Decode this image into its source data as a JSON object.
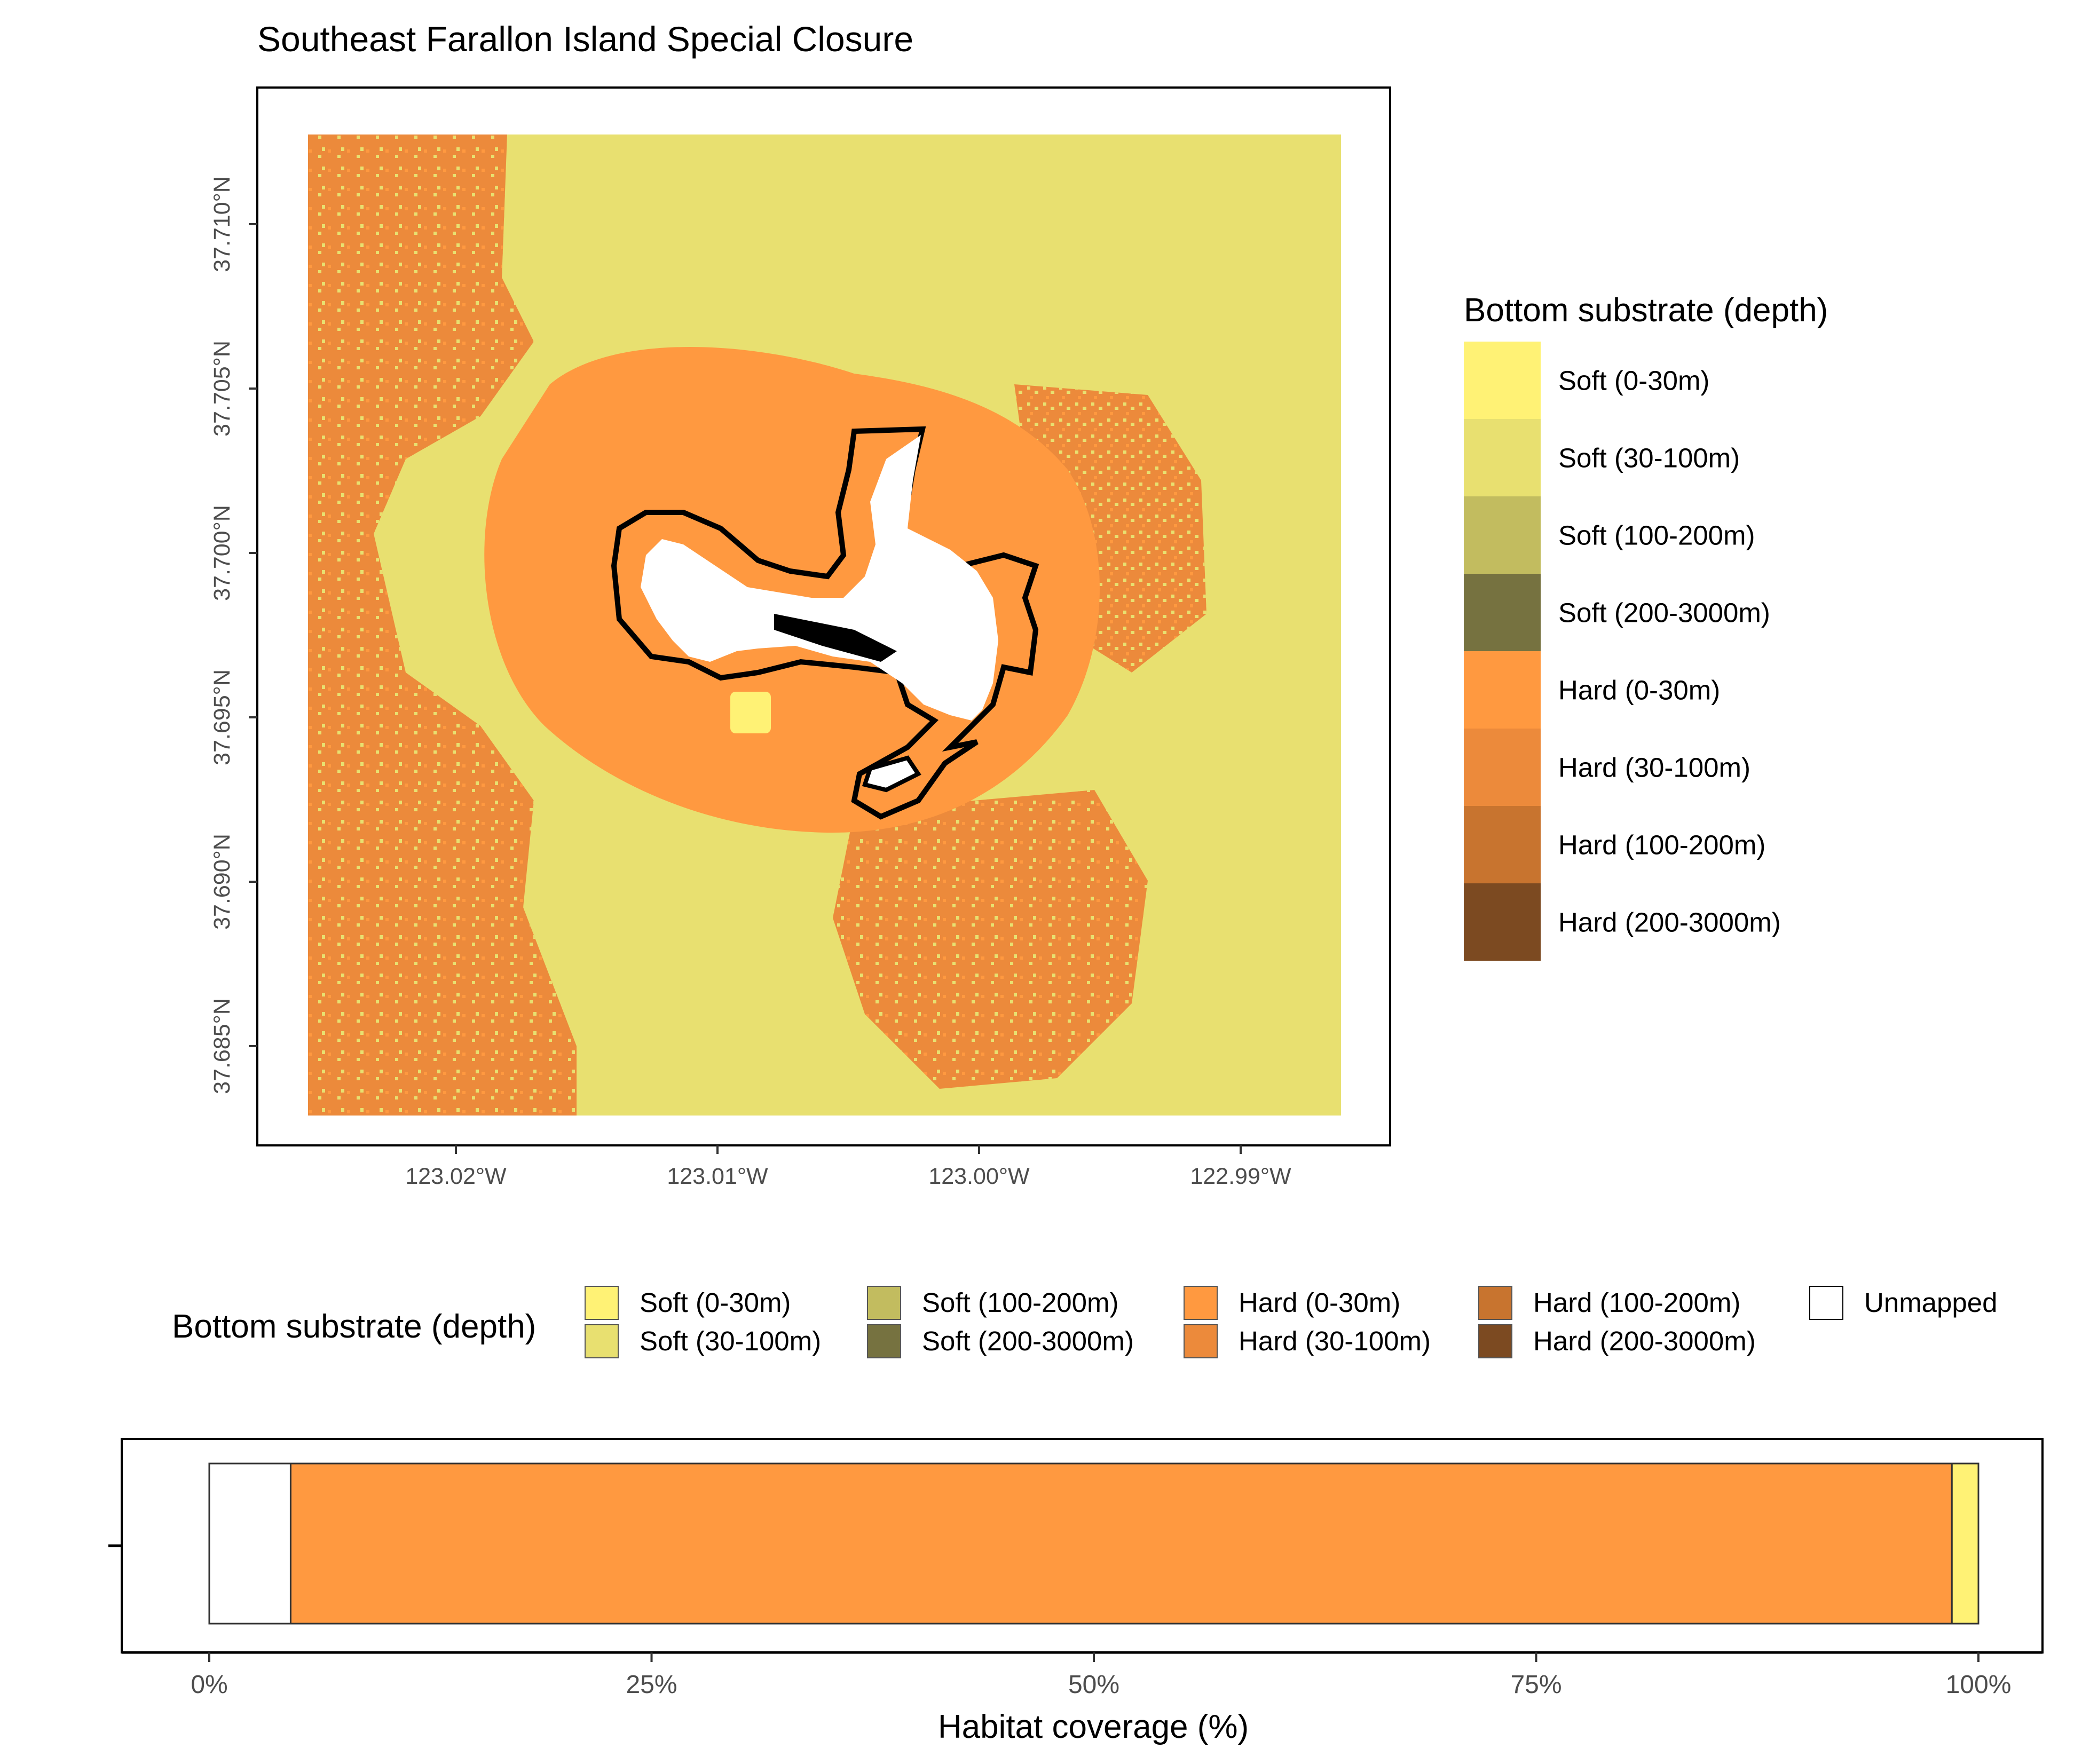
{
  "title": "Southeast Farallon Island Special Closure",
  "map": {
    "y_ticks": [
      "37.710°N",
      "37.705°N",
      "37.700°N",
      "37.695°N",
      "37.690°N",
      "37.685°N"
    ],
    "x_ticks": [
      "123.02°W",
      "123.01°W",
      "123.00°W",
      "122.99°W"
    ],
    "legend_title": "Bottom substrate (depth)",
    "legend": [
      {
        "label": "Soft (0-30m)",
        "color": "#FFF275"
      },
      {
        "label": "Soft (30-100m)",
        "color": "#E8E070"
      },
      {
        "label": "Soft (100-200m)",
        "color": "#C2BC5F"
      },
      {
        "label": "Soft (200-3000m)",
        "color": "#767240"
      },
      {
        "label": "Hard (0-30m)",
        "color": "#FF9940"
      },
      {
        "label": "Hard (30-100m)",
        "color": "#EC8A3B"
      },
      {
        "label": "Hard (100-200m)",
        "color": "#C8742F"
      },
      {
        "label": "Hard (200-3000m)",
        "color": "#7C4A21"
      }
    ]
  },
  "bottom_legend": {
    "title": "Bottom substrate (depth)",
    "items": [
      {
        "label": "Soft (0-30m)",
        "color": "#FFF275"
      },
      {
        "label": "Soft (30-100m)",
        "color": "#E8E070"
      },
      {
        "label": "Soft (100-200m)",
        "color": "#C2BC5F"
      },
      {
        "label": "Soft (200-3000m)",
        "color": "#767240"
      },
      {
        "label": "Hard (0-30m)",
        "color": "#FF9940"
      },
      {
        "label": "Hard (30-100m)",
        "color": "#EC8A3B"
      },
      {
        "label": "Hard (100-200m)",
        "color": "#C8742F"
      },
      {
        "label": "Hard (200-3000m)",
        "color": "#7C4A21"
      },
      {
        "label": "Unmapped",
        "color": "#FFFFFF"
      }
    ]
  },
  "chart_data": {
    "type": "bar",
    "orientation": "horizontal-stacked",
    "xlabel": "Habitat coverage (%)",
    "x_ticks": [
      "0%",
      "25%",
      "50%",
      "75%",
      "100%"
    ],
    "xlim": [
      0,
      100
    ],
    "series": [
      {
        "name": "Unmapped",
        "value": 4.6,
        "color": "#FFFFFF"
      },
      {
        "name": "Hard (0-30m)",
        "value": 93.9,
        "color": "#FF9940"
      },
      {
        "name": "Soft (0-30m)",
        "value": 1.5,
        "color": "#FFF275"
      }
    ]
  }
}
